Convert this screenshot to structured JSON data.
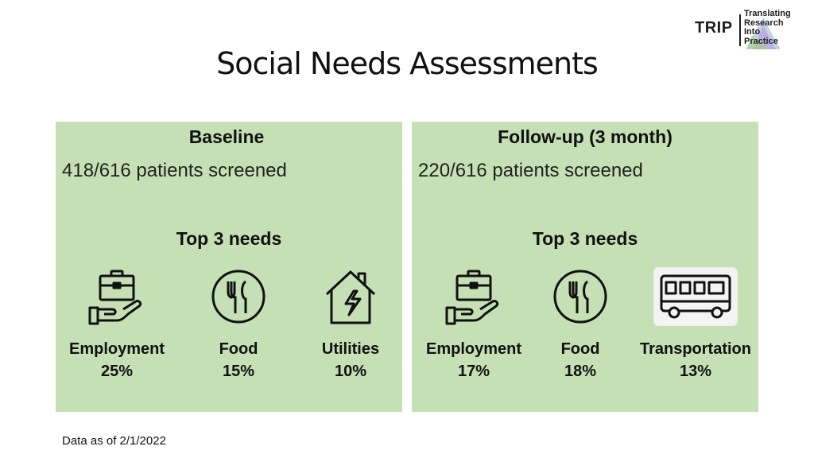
{
  "logo": {
    "abbr": "TRIP",
    "line1": "Translating",
    "line2": "Research",
    "line3": "Into",
    "line4": "Practice"
  },
  "title": "Social Needs Assessments",
  "baseline": {
    "heading": "Baseline",
    "screened": "418/616 patients screened",
    "needs_title": "Top 3 needs",
    "needs": [
      {
        "label": "Employment",
        "pct": "25%",
        "icon": "briefcase-hand-icon"
      },
      {
        "label": "Food",
        "pct": "15%",
        "icon": "fork-knife-plate-icon"
      },
      {
        "label": "Utilities",
        "pct": "10%",
        "icon": "house-lightning-icon"
      }
    ]
  },
  "followup": {
    "heading": "Follow-up (3 month)",
    "screened": "220/616 patients screened",
    "needs_title": "Top 3 needs",
    "needs": [
      {
        "label": "Employment",
        "pct": "17%",
        "icon": "briefcase-hand-icon"
      },
      {
        "label": "Food",
        "pct": "18%",
        "icon": "fork-knife-plate-icon"
      },
      {
        "label": "Transportation",
        "pct": "13%",
        "icon": "bus-icon"
      }
    ]
  },
  "footnote": "Data as of 2/1/2022",
  "colors": {
    "panel": "#c5e0b4",
    "text": "#111111"
  }
}
